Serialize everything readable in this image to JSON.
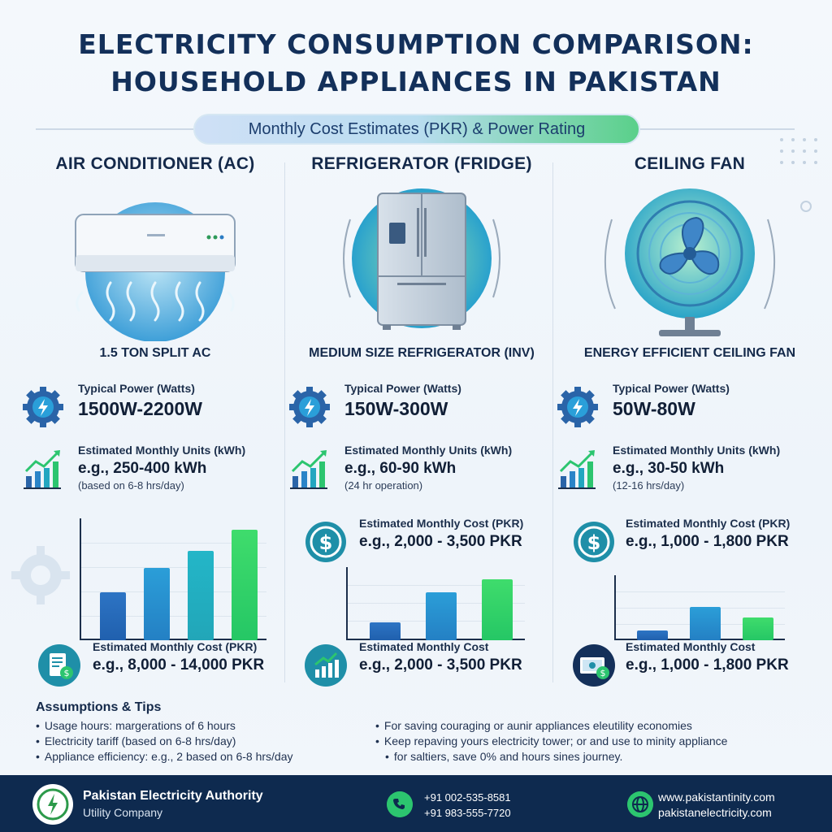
{
  "header": {
    "title_line1": "ELECTRICITY CONSUMPTION COMPARISON:",
    "title_line2": "HOUSEHOLD APPLIANCES IN PAKISTAN",
    "subtitle": "Monthly Cost Estimates (PKR) & Power Rating"
  },
  "colors": {
    "navy": "#0e2a4f",
    "blue": "#2060ae",
    "teal": "#23b6c8",
    "green": "#2cc56f"
  },
  "columns": [
    {
      "title": "AIR CONDITIONER (AC)",
      "model": "1.5 TON SPLIT AC",
      "power_label": "Typical Power (Watts)",
      "power_value": "1500W-2200W",
      "units_label": "Estimated Monthly Units (kWh)",
      "units_value": "e.g., 250-400 kWh",
      "units_note": "(based on 6-8 hrs/day)",
      "cost_label": "Estimated Monthly Cost (PKR)",
      "cost_value": "e.g., 8,000 - 14,000 PKR",
      "icons": [
        "gear-bolt-icon",
        "trend-chart-icon",
        "bill-icon"
      ]
    },
    {
      "title": "REFRIGERATOR (FRIDGE)",
      "model": "MEDIUM SIZE REFRIGERATOR (INV)",
      "power_label": "Typical Power (Watts)",
      "power_value": "150W-300W",
      "units_label": "Estimated Monthly Units (kWh)",
      "units_value": "e.g., 60-90 kWh",
      "units_note": "(24 hr operation)",
      "cost_label": "Estimated Monthly Cost (PKR)",
      "cost_value": "e.g., 2,000 - 3,500 PKR",
      "cost2_label": "Estimated Monthly Cost",
      "cost2_value": "e.g., 2,000 - 3,500 PKR",
      "icons": [
        "gear-bolt-icon",
        "trend-chart-icon",
        "dollar-icon",
        "trend-chart-icon"
      ]
    },
    {
      "title": "CEILING FAN",
      "model": "ENERGY EFFICIENT CEILING FAN",
      "power_label": "Typical Power (Watts)",
      "power_value": "50W-80W",
      "units_label": "Estimated Monthly Units (kWh)",
      "units_value": "e.g., 30-50 kWh",
      "units_note": "(12-16 hrs/day)",
      "cost_label": "Estimated Monthly Cost (PKR)",
      "cost_value": "e.g., 1,000 - 1,800 PKR",
      "cost2_label": "Estimated Monthly Cost",
      "cost2_value": "e.g., 1,000 - 1,800 PKR",
      "icons": [
        "gear-bolt-icon",
        "trend-chart-icon",
        "dollar-icon",
        "cash-icon"
      ]
    }
  ],
  "chart_data": [
    {
      "type": "bar",
      "title": "",
      "values": [
        0.4,
        0.6,
        0.74,
        0.92
      ],
      "ylim": [
        0,
        1
      ]
    },
    {
      "type": "bar",
      "title": "",
      "values": [
        0.25,
        0.67,
        0.85
      ],
      "ylim": [
        0,
        1
      ]
    },
    {
      "type": "bar",
      "title": "",
      "values": [
        0.16,
        0.52,
        0.36
      ],
      "ylim": [
        0,
        1
      ]
    }
  ],
  "assumptions": {
    "heading": "Assumptions & Tips",
    "left": [
      "Usage hours: margerations of 6 hours",
      "Electricity tariff (based on 6-8 hrs/day)",
      "Appliance efficiency: e.g., 2 based on 6-8 hrs/day"
    ],
    "right": [
      "For saving couraging or aunir appliances eleutility economies",
      "Keep repaving yours electricity tower; or and use to minity appliance",
      "for saltiers, save 0% and hours sines journey."
    ]
  },
  "footer": {
    "org": "Pakistan Electricity Authority",
    "org_sub": "Utility Company",
    "phone1": "+91 002-535-8581",
    "phone2": "+91 983-555-7720",
    "web1": "www.pakistantinity.com",
    "web2": "pakistanelectricity.com"
  }
}
